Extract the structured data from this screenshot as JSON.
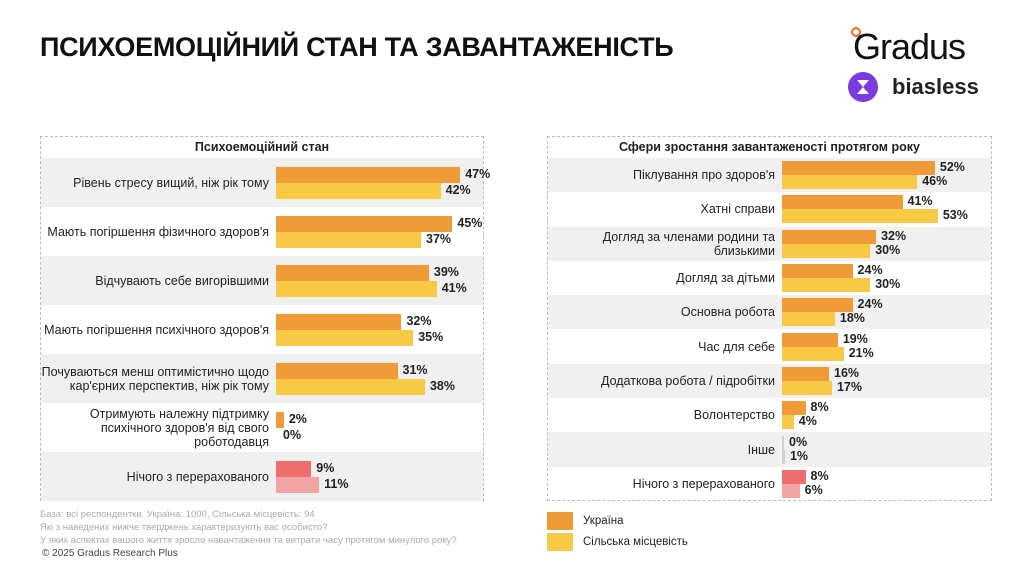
{
  "page": {
    "title": "ПСИХОЕМОЦІЙНИЙ СТАН ТА ЗАВАНТАЖЕНІСТЬ"
  },
  "logos": {
    "gradus": "Gradus",
    "biasless": "biasless"
  },
  "colors": {
    "ukraine": "#F19A38",
    "rural": "#F8C945",
    "none_ukraine": "#EE6E6E",
    "none_rural": "#F3A3A3",
    "other": "#D0D0D0"
  },
  "chart_data": [
    {
      "type": "bar",
      "orientation": "horizontal",
      "title": "Психоемоційний стан",
      "categories": [
        "Рівень стресу вищий, ніж рік тому",
        "Мають погіршення фізичного здоров'я",
        "Відчувають себе вигорівшими",
        "Мають погіршення психічного здоров'я",
        "Почуваються менш оптимістично щодо кар'єрних перспектив, ніж рік тому",
        "Отримують належну підтримку психічного здоров'я від свого роботодавця",
        "Нічого з перерахованого"
      ],
      "series": [
        {
          "name": "Україна",
          "values": [
            47,
            45,
            39,
            32,
            31,
            2,
            9
          ]
        },
        {
          "name": "Сільська місцевість",
          "values": [
            42,
            37,
            41,
            35,
            38,
            0,
            11
          ]
        }
      ],
      "unit": "%",
      "highlight": {
        "Нічого з перерахованого": "none"
      }
    },
    {
      "type": "bar",
      "orientation": "horizontal",
      "title": "Сфери зростання завантаженості протягом року",
      "categories": [
        "Піклування про здоров'я",
        "Хатні справи",
        "Догляд за членами родини та близькими",
        "Догляд за дітьми",
        "Основна робота",
        "Час для себе",
        "Додаткова робота / підробітки",
        "Волонтерство",
        "Інше",
        "Нічого з перерахованого"
      ],
      "series": [
        {
          "name": "Україна",
          "values": [
            52,
            41,
            32,
            24,
            24,
            19,
            16,
            8,
            0,
            8
          ]
        },
        {
          "name": "Сільська місцевість",
          "values": [
            46,
            53,
            30,
            30,
            18,
            21,
            17,
            4,
            1,
            6
          ]
        }
      ],
      "unit": "%",
      "highlight": {
        "Інше": "other",
        "Нічого з перерахованого": "none"
      }
    }
  ],
  "legend": [
    {
      "label": "Україна"
    },
    {
      "label": "Сільська місцевість"
    }
  ],
  "footer": {
    "base": "База: всі респондентки. Україна: 1000, Сільська місцевість: 94",
    "q1": "Які з наведених нижче тверджень характеризують вас особисто?",
    "q2": "У яких аспектах вашого життя зросло навантаження та витрати часу протягом минулого року?",
    "copyright": "© 2025 Gradus Research Plus"
  }
}
